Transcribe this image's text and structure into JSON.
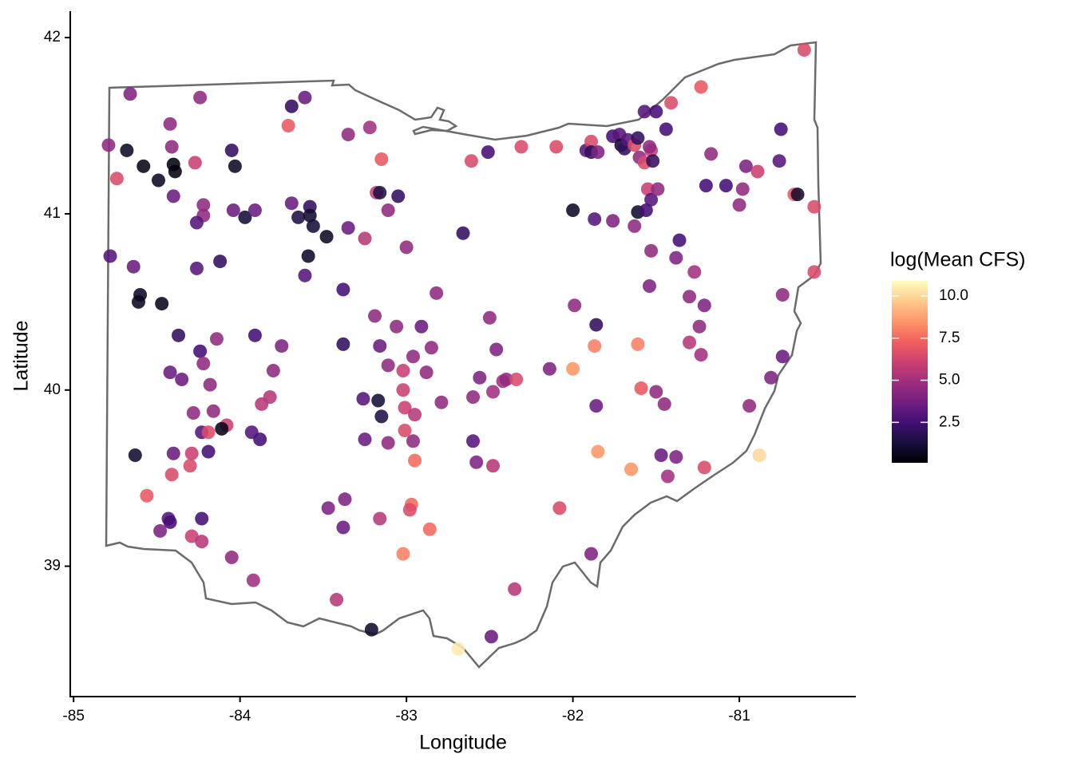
{
  "chart_data": {
    "type": "scatter",
    "x_label": "Longitude",
    "y_label": "Latitude",
    "xlim": [
      -85.02,
      -80.3
    ],
    "ylim": [
      38.26,
      42.15
    ],
    "xticks": [
      -85,
      -84,
      -83,
      -82,
      -81
    ],
    "yticks": [
      39,
      40,
      41,
      42
    ],
    "x": [
      -84.79,
      -84.66,
      -84.68,
      -84.74,
      -84.58,
      -84.49,
      -84.42,
      -84.41,
      -84.4,
      -84.39,
      -84.27,
      -84.4,
      -84.24,
      -84.22,
      -84.22,
      -84.26,
      -84.05,
      -84.03,
      -84.04,
      -83.97,
      -83.91,
      -84.78,
      -84.64,
      -84.6,
      -84.61,
      -84.47,
      -84.26,
      -84.12,
      -84.37,
      -84.24,
      -84.22,
      -84.42,
      -84.35,
      -84.14,
      -84.18,
      -84.28,
      -84.16,
      -84.23,
      -84.19,
      -84.08,
      -84.11,
      -83.91,
      -83.75,
      -83.8,
      -83.82,
      -83.87,
      -83.93,
      -83.88,
      -84.63,
      -84.4,
      -84.29,
      -84.19,
      -84.41,
      -84.3,
      -84.56,
      -84.43,
      -84.42,
      -84.23,
      -84.48,
      -84.29,
      -84.23,
      -84.05,
      -83.92,
      -83.71,
      -83.69,
      -83.61,
      -83.69,
      -83.65,
      -83.58,
      -83.58,
      -83.56,
      -83.48,
      -83.59,
      -83.61,
      -83.35,
      -83.22,
      -83.35,
      -83.25,
      -83.15,
      -83.18,
      -83.16,
      -83.05,
      -83.11,
      -83.0,
      -83.38,
      -83.38,
      -83.19,
      -83.16,
      -83.11,
      -83.06,
      -82.91,
      -82.96,
      -82.85,
      -83.02,
      -82.88,
      -83.26,
      -83.17,
      -83.02,
      -83.15,
      -83.01,
      -82.95,
      -83.01,
      -83.25,
      -83.11,
      -82.96,
      -82.95,
      -82.82,
      -82.79,
      -83.47,
      -83.37,
      -83.38,
      -83.16,
      -82.97,
      -82.98,
      -82.86,
      -83.02,
      -83.42,
      -83.21,
      -82.69,
      -82.49,
      -82.35,
      -82.61,
      -82.51,
      -82.31,
      -82.1,
      -82.66,
      -82.5,
      -82.46,
      -82.56,
      -82.6,
      -82.48,
      -82.42,
      -82.4,
      -82.34,
      -82.6,
      -82.58,
      -82.48,
      -82.14,
      -82.08,
      -82.0,
      -81.99,
      -82.0,
      -81.86,
      -81.87,
      -81.86,
      -81.85,
      -81.89,
      -81.92,
      -81.89,
      -81.89,
      -81.85,
      -81.87,
      -81.76,
      -81.76,
      -81.72,
      -81.71,
      -81.69,
      -81.67,
      -81.63,
      -81.61,
      -81.57,
      -81.5,
      -81.53,
      -81.6,
      -81.57,
      -81.52,
      -81.54,
      -81.55,
      -81.53,
      -81.49,
      -81.61,
      -81.56,
      -81.63,
      -81.44,
      -81.41,
      -81.23,
      -81.36,
      -81.53,
      -81.38,
      -81.54,
      -81.27,
      -81.3,
      -81.21,
      -81.24,
      -81.3,
      -81.23,
      -81.61,
      -81.59,
      -81.5,
      -81.45,
      -81.47,
      -81.38,
      -81.43,
      -81.21,
      -81.65,
      -81.17,
      -81.2,
      -81.08,
      -80.96,
      -80.89,
      -80.98,
      -81.0,
      -80.75,
      -80.76,
      -80.67,
      -80.65,
      -80.61,
      -80.55,
      -80.55,
      -80.74,
      -80.74,
      -80.81,
      -80.94,
      -80.88
    ],
    "y": [
      41.39,
      41.68,
      41.36,
      41.2,
      41.27,
      41.19,
      41.51,
      41.38,
      41.28,
      41.24,
      41.29,
      41.1,
      41.66,
      41.05,
      40.99,
      40.95,
      41.36,
      41.27,
      41.02,
      40.98,
      41.02,
      40.76,
      40.7,
      40.54,
      40.5,
      40.49,
      40.69,
      40.73,
      40.31,
      40.22,
      40.15,
      40.1,
      40.06,
      40.29,
      40.03,
      39.87,
      39.88,
      39.76,
      39.76,
      39.8,
      39.78,
      40.31,
      40.25,
      40.11,
      39.96,
      39.92,
      39.76,
      39.72,
      39.63,
      39.64,
      39.64,
      39.65,
      39.52,
      39.57,
      39.4,
      39.27,
      39.25,
      39.27,
      39.2,
      39.17,
      39.14,
      39.05,
      38.92,
      41.5,
      41.61,
      41.66,
      41.06,
      40.98,
      41.04,
      40.99,
      40.93,
      40.87,
      40.76,
      40.65,
      41.45,
      41.49,
      40.92,
      40.86,
      41.31,
      41.12,
      41.12,
      41.1,
      41.02,
      40.81,
      40.57,
      40.26,
      40.42,
      40.25,
      40.14,
      40.36,
      40.36,
      40.19,
      40.24,
      40.11,
      40.1,
      39.95,
      39.94,
      40.0,
      39.85,
      39.9,
      39.86,
      39.77,
      39.72,
      39.7,
      39.71,
      39.6,
      40.55,
      39.93,
      39.33,
      39.38,
      39.22,
      39.27,
      39.35,
      39.32,
      39.21,
      39.07,
      38.81,
      38.64,
      38.53,
      38.6,
      38.87,
      41.3,
      41.35,
      41.38,
      41.38,
      40.89,
      40.41,
      40.23,
      40.07,
      39.96,
      39.99,
      40.05,
      40.06,
      40.06,
      39.71,
      39.59,
      39.57,
      40.12,
      39.33,
      41.02,
      40.48,
      40.12,
      40.37,
      40.25,
      39.91,
      39.65,
      39.07,
      41.36,
      41.41,
      41.35,
      41.35,
      40.97,
      40.96,
      41.44,
      41.45,
      41.39,
      41.37,
      41.42,
      41.39,
      41.43,
      41.58,
      41.58,
      41.36,
      41.32,
      41.29,
      41.3,
      41.38,
      41.14,
      41.08,
      41.14,
      41.01,
      41.02,
      40.93,
      41.48,
      41.63,
      41.72,
      40.85,
      40.79,
      40.75,
      40.59,
      40.67,
      40.53,
      40.48,
      40.36,
      40.27,
      40.2,
      40.26,
      40.01,
      39.99,
      39.92,
      39.63,
      39.62,
      39.51,
      39.56,
      39.55,
      41.34,
      41.16,
      41.16,
      41.27,
      41.24,
      41.14,
      41.05,
      41.48,
      41.3,
      41.11,
      41.11,
      41.93,
      41.04,
      40.67,
      40.54,
      40.19,
      40.07,
      39.91,
      39.63
    ],
    "color": {
      "name": "log(Mean CFS)",
      "lim": [
        0.1,
        10.9
      ],
      "ticks": [
        {
          "value": 10,
          "label": "10.0"
        },
        7.5,
        {
          "value": 5,
          "label": "5.0"
        },
        2.5
      ],
      "palette": [
        "#000004",
        "#180f3d",
        "#440f76",
        "#721f81",
        "#9e2f7f",
        "#cd4071",
        "#f1605d",
        "#fd9668",
        "#feca8d",
        "#fcfdbf"
      ],
      "values": [
        4.5,
        4,
        0.8,
        6.5,
        0.5,
        0.7,
        4.5,
        4.5,
        0.3,
        0.3,
        6,
        3.5,
        4.5,
        4.5,
        4.5,
        3,
        2,
        0.8,
        3.5,
        1.2,
        3.5,
        3,
        3.5,
        0.8,
        0.7,
        0.6,
        3,
        2,
        2,
        2.5,
        4.5,
        3.5,
        3.5,
        4.5,
        4.5,
        4.5,
        4.5,
        3,
        6.5,
        6,
        0.5,
        2.5,
        4,
        4.5,
        5.5,
        5.5,
        3,
        2.5,
        1,
        3.5,
        6,
        2.5,
        6.5,
        6.5,
        7,
        3,
        2.5,
        2.5,
        4,
        6,
        5.5,
        4.5,
        5,
        7,
        2,
        3.5,
        3.5,
        1.5,
        2,
        1,
        1.2,
        0.8,
        0.8,
        3,
        4.5,
        5,
        3.5,
        5.5,
        7,
        6,
        1.5,
        2,
        4.5,
        4.5,
        2.5,
        2,
        4.5,
        3.5,
        4.5,
        4.5,
        3.5,
        4.5,
        4.5,
        6,
        4.5,
        3,
        1.2,
        6,
        1.5,
        6,
        5.5,
        6.5,
        3.5,
        4.5,
        4.5,
        7.5,
        4.5,
        4.5,
        4,
        4,
        3.5,
        5.5,
        7.5,
        6.5,
        7.5,
        8,
        5.5,
        1,
        10.5,
        3.5,
        5.5,
        6.5,
        2.5,
        6.5,
        6.5,
        2,
        4.5,
        4,
        4,
        4.5,
        5,
        5,
        4.5,
        6.5,
        3,
        4,
        5.5,
        4,
        6.5,
        0.8,
        4.5,
        8.5,
        2,
        8,
        3.5,
        8.5,
        4,
        3,
        6.5,
        2,
        4,
        3,
        4,
        2.5,
        3,
        1,
        2,
        3,
        6.5,
        2,
        3,
        2.5,
        6,
        4.5,
        6.5,
        2,
        4.5,
        6,
        3,
        4.5,
        1,
        2.5,
        4.5,
        2.5,
        6.5,
        7,
        2.5,
        4.5,
        4,
        4,
        5,
        4.5,
        4,
        4.5,
        5.5,
        5,
        8,
        7,
        4.5,
        4.5,
        3.5,
        4,
        5,
        6.5,
        8.5,
        4.5,
        2.5,
        2.5,
        4,
        6,
        4.5,
        4.5,
        2.5,
        3,
        7,
        1,
        6.5,
        6.5,
        6.5,
        4.5,
        3.5,
        4,
        4.5,
        10
      ]
    }
  }
}
